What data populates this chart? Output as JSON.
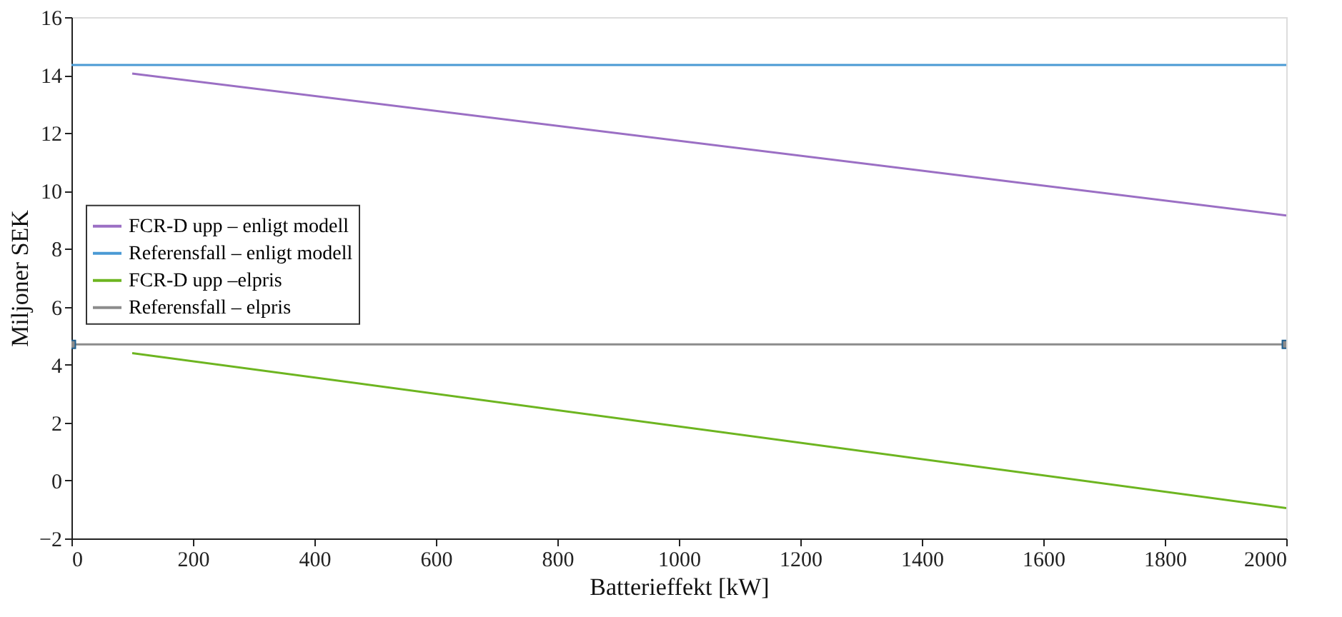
{
  "chart_data": {
    "type": "line",
    "xlabel": "Batterieffekt [kW]",
    "ylabel": "Miljoner SEK",
    "xlim": [
      0,
      2000
    ],
    "xticks": [
      0,
      200,
      400,
      600,
      800,
      1000,
      1200,
      1400,
      1600,
      1800,
      2000
    ],
    "ylim": [
      -2,
      16
    ],
    "yticks": [
      -2,
      0,
      2,
      4,
      6,
      8,
      10,
      12,
      14,
      16
    ],
    "grid": false,
    "legend": "left",
    "line_style": "solid",
    "series": [
      {
        "name": "FCR-D upp – enligt modell",
        "color": "#9b6fc4",
        "x": [
          100,
          2000
        ],
        "values": [
          14.05,
          9.15
        ]
      },
      {
        "name": "Referensfall – enligt modell",
        "color": "#4a9ad4",
        "x": [
          0,
          2000
        ],
        "values": [
          14.35,
          14.35
        ]
      },
      {
        "name": "FCR-D upp –elpris",
        "color": "#6db520",
        "x": [
          100,
          2000
        ],
        "values": [
          4.4,
          -0.95
        ]
      },
      {
        "name": "Referensfall – elpris",
        "color": "#8c8c8c",
        "x": [
          0,
          2000
        ],
        "values": [
          4.7,
          4.7
        ],
        "marker": "square"
      }
    ]
  }
}
